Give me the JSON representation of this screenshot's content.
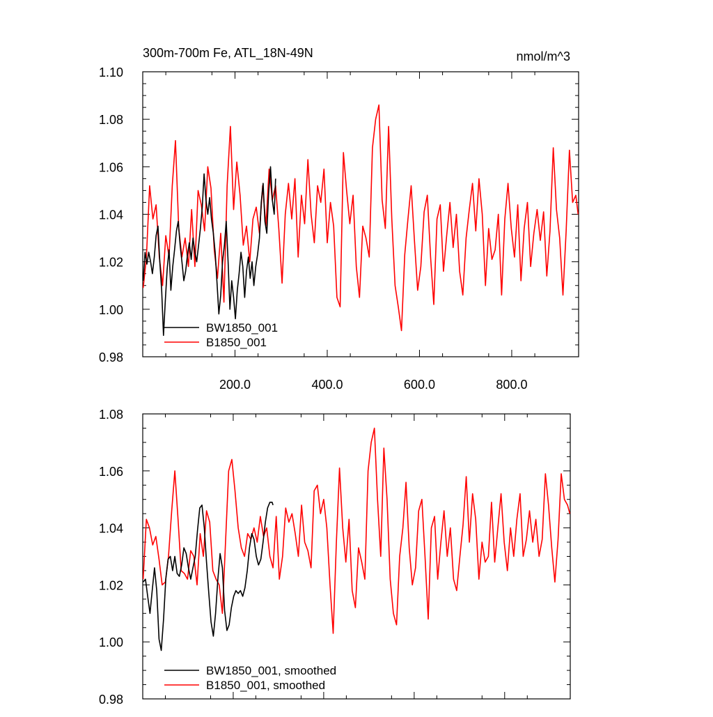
{
  "chart_data": [
    {
      "type": "line",
      "title": "300m-700m Fe, ATL_18N-49N",
      "units": "nmol/m^3",
      "xlabel": "",
      "ylabel": "",
      "xlim": [
        0,
        945
      ],
      "ylim": [
        0.98,
        1.1
      ],
      "x_ticks": [
        200,
        400,
        600,
        800
      ],
      "x_tick_labels": [
        "200.0",
        "400.0",
        "600.0",
        "800.0"
      ],
      "y_ticks": [
        0.98,
        1.0,
        1.02,
        1.04,
        1.06,
        1.08,
        1.1
      ],
      "y_tick_labels": [
        "0.98",
        "1.00",
        "1.02",
        "1.04",
        "1.06",
        "1.08",
        "1.10"
      ],
      "grid": false,
      "legend_position": "bottom-left",
      "series": [
        {
          "name": "BW1850_001",
          "color": "#000000",
          "x": [
            1,
            5,
            9,
            13,
            17,
            21,
            25,
            29,
            33,
            37,
            41,
            45,
            49,
            53,
            57,
            61,
            65,
            69,
            73,
            77,
            81,
            85,
            89,
            93,
            97,
            101,
            105,
            109,
            113,
            117,
            121,
            125,
            129,
            133,
            137,
            141,
            145,
            149,
            153,
            157,
            161,
            165,
            169,
            173,
            177,
            181,
            185,
            189,
            193,
            197,
            201,
            205,
            209,
            213,
            217,
            221,
            225,
            229,
            233,
            237,
            241,
            245,
            249,
            253,
            257,
            261,
            265,
            269,
            273,
            277,
            281,
            285,
            288
          ],
          "y": [
            1.012,
            1.024,
            1.019,
            1.024,
            1.02,
            1.015,
            1.022,
            1.031,
            1.035,
            1.02,
            1.008,
            0.989,
            1.004,
            1.017,
            1.025,
            1.008,
            1.018,
            1.025,
            1.033,
            1.037,
            1.027,
            1.02,
            1.012,
            1.016,
            1.023,
            1.028,
            1.021,
            1.03,
            1.024,
            1.02,
            1.027,
            1.034,
            1.043,
            1.057,
            1.046,
            1.04,
            1.047,
            1.038,
            1.032,
            1.024,
            1.011,
            0.998,
            1.006,
            1.02,
            1.027,
            1.037,
            1.02,
            1.0,
            1.012,
            1.005,
            0.996,
            1.008,
            1.015,
            1.024,
            1.018,
            1.005,
            1.016,
            1.022,
            1.013,
            1.02,
            1.01,
            1.018,
            1.023,
            1.03,
            1.045,
            1.053,
            1.037,
            1.032,
            1.049,
            1.06,
            1.046,
            1.04,
            1.055
          ]
        },
        {
          "name": "B1850_001",
          "color": "#ff0000",
          "x": [
            1,
            8,
            15,
            22,
            29,
            36,
            43,
            50,
            57,
            64,
            71,
            78,
            85,
            92,
            99,
            106,
            113,
            120,
            127,
            134,
            141,
            148,
            155,
            162,
            169,
            176,
            183,
            190,
            197,
            204,
            211,
            218,
            225,
            232,
            239,
            246,
            253,
            260,
            267,
            274,
            281,
            288,
            295,
            302,
            309,
            316,
            323,
            330,
            337,
            344,
            351,
            358,
            365,
            372,
            379,
            386,
            393,
            400,
            407,
            414,
            421,
            428,
            435,
            442,
            449,
            456,
            463,
            470,
            477,
            484,
            491,
            498,
            505,
            512,
            519,
            526,
            533,
            540,
            547,
            554,
            561,
            568,
            575,
            582,
            589,
            596,
            603,
            610,
            617,
            624,
            631,
            638,
            645,
            652,
            659,
            666,
            673,
            680,
            687,
            694,
            701,
            708,
            715,
            722,
            729,
            736,
            743,
            750,
            757,
            764,
            771,
            778,
            785,
            792,
            799,
            806,
            813,
            820,
            827,
            834,
            841,
            848,
            855,
            862,
            869,
            876,
            883,
            890,
            897,
            904,
            911,
            918,
            925,
            932,
            939,
            944
          ],
          "y": [
            1.009,
            1.022,
            1.052,
            1.038,
            1.044,
            1.022,
            1.01,
            1.031,
            1.022,
            1.052,
            1.071,
            1.034,
            1.022,
            1.03,
            1.018,
            1.042,
            1.018,
            1.05,
            1.044,
            1.033,
            1.06,
            1.051,
            1.025,
            1.013,
            1.032,
            1.003,
            1.052,
            1.077,
            1.042,
            1.062,
            1.048,
            1.027,
            1.035,
            1.02,
            1.038,
            1.043,
            1.032,
            1.052,
            1.035,
            1.059,
            1.046,
            1.052,
            1.034,
            1.011,
            1.04,
            1.053,
            1.038,
            1.055,
            1.022,
            1.048,
            1.036,
            1.063,
            1.04,
            1.028,
            1.052,
            1.045,
            1.059,
            1.028,
            1.045,
            1.035,
            1.005,
            1.001,
            1.066,
            1.05,
            1.036,
            1.048,
            1.018,
            1.005,
            1.035,
            1.03,
            1.022,
            1.068,
            1.08,
            1.086,
            1.046,
            1.034,
            1.077,
            1.038,
            1.01,
            1.001,
            0.991,
            1.023,
            1.038,
            1.052,
            1.029,
            1.008,
            1.018,
            1.041,
            1.048,
            1.022,
            1.002,
            1.038,
            1.044,
            1.016,
            1.031,
            1.045,
            1.026,
            1.04,
            1.016,
            1.006,
            1.03,
            1.042,
            1.053,
            1.033,
            1.055,
            1.04,
            1.01,
            1.034,
            1.021,
            1.025,
            1.04,
            1.006,
            1.038,
            1.053,
            1.034,
            1.022,
            1.044,
            1.012,
            1.034,
            1.045,
            1.018,
            1.032,
            1.042,
            1.029,
            1.041,
            1.014,
            1.033,
            1.068,
            1.042,
            1.03,
            1.006,
            1.033,
            1.067,
            1.045,
            1.048,
            1.04
          ]
        }
      ]
    },
    {
      "type": "line",
      "title": "",
      "xlabel": "",
      "ylabel": "",
      "xlim": [
        0,
        945
      ],
      "ylim": [
        0.98,
        1.08
      ],
      "x_ticks": [
        200,
        400,
        600,
        800
      ],
      "x_tick_labels": [],
      "y_ticks": [
        0.98,
        1.0,
        1.02,
        1.04,
        1.06,
        1.08
      ],
      "y_tick_labels": [
        "0.98",
        "1.00",
        "1.02",
        "1.04",
        "1.06",
        "1.08"
      ],
      "grid": false,
      "legend_position": "bottom-left",
      "series": [
        {
          "name": "BW1850_001, smoothed",
          "color": "#000000",
          "x": [
            1,
            6,
            11,
            16,
            21,
            26,
            31,
            36,
            41,
            46,
            51,
            56,
            61,
            66,
            71,
            76,
            81,
            86,
            91,
            96,
            101,
            106,
            111,
            116,
            121,
            126,
            131,
            136,
            141,
            146,
            151,
            156,
            161,
            166,
            171,
            176,
            181,
            186,
            191,
            196,
            201,
            206,
            211,
            216,
            221,
            226,
            231,
            236,
            241,
            246,
            251,
            256,
            261,
            266,
            271,
            276,
            281,
            286,
            288
          ],
          "y": [
            1.021,
            1.022,
            1.016,
            1.01,
            1.018,
            1.026,
            1.018,
            1.001,
            0.997,
            1.008,
            1.022,
            1.029,
            1.03,
            1.025,
            1.03,
            1.024,
            1.023,
            1.027,
            1.033,
            1.031,
            1.026,
            1.022,
            1.026,
            1.03,
            1.039,
            1.047,
            1.048,
            1.04,
            1.028,
            1.017,
            1.007,
            1.002,
            1.01,
            1.022,
            1.031,
            1.026,
            1.011,
            1.004,
            1.006,
            1.012,
            1.016,
            1.018,
            1.017,
            1.018,
            1.016,
            1.019,
            1.025,
            1.033,
            1.038,
            1.036,
            1.03,
            1.027,
            1.029,
            1.035,
            1.042,
            1.047,
            1.049,
            1.049,
            1.048
          ]
        },
        {
          "name": "B1850_001, smoothed",
          "color": "#ff0000",
          "x": [
            1,
            8,
            15,
            22,
            29,
            36,
            43,
            50,
            57,
            64,
            71,
            78,
            85,
            92,
            99,
            106,
            113,
            120,
            127,
            134,
            141,
            148,
            155,
            162,
            169,
            176,
            183,
            190,
            197,
            204,
            211,
            218,
            225,
            232,
            239,
            246,
            253,
            260,
            267,
            274,
            281,
            288,
            295,
            302,
            309,
            316,
            323,
            330,
            337,
            344,
            351,
            358,
            365,
            372,
            379,
            386,
            393,
            400,
            407,
            414,
            421,
            428,
            435,
            442,
            449,
            456,
            463,
            470,
            477,
            484,
            491,
            498,
            505,
            512,
            519,
            526,
            533,
            540,
            547,
            554,
            561,
            568,
            575,
            582,
            589,
            596,
            603,
            610,
            617,
            624,
            631,
            638,
            645,
            652,
            659,
            666,
            673,
            680,
            687,
            694,
            701,
            708,
            715,
            722,
            729,
            736,
            743,
            750,
            757,
            764,
            771,
            778,
            785,
            792,
            799,
            806,
            813,
            820,
            827,
            834,
            841,
            848,
            855,
            862,
            869,
            876,
            883,
            890,
            897,
            904,
            911,
            918,
            925,
            932,
            939,
            944
          ],
          "y": [
            1.022,
            1.043,
            1.04,
            1.034,
            1.037,
            1.029,
            1.02,
            1.021,
            1.03,
            1.046,
            1.06,
            1.043,
            1.025,
            1.024,
            1.022,
            1.032,
            1.03,
            1.02,
            1.038,
            1.03,
            1.046,
            1.042,
            1.025,
            1.022,
            1.02,
            1.01,
            1.035,
            1.06,
            1.064,
            1.053,
            1.04,
            1.033,
            1.03,
            1.038,
            1.036,
            1.04,
            1.035,
            1.044,
            1.037,
            1.04,
            1.03,
            1.026,
            1.044,
            1.022,
            1.03,
            1.047,
            1.042,
            1.045,
            1.038,
            1.03,
            1.048,
            1.035,
            1.032,
            1.026,
            1.053,
            1.055,
            1.045,
            1.05,
            1.04,
            1.02,
            1.003,
            1.035,
            1.061,
            1.04,
            1.028,
            1.043,
            1.018,
            1.012,
            1.033,
            1.028,
            1.022,
            1.06,
            1.07,
            1.075,
            1.05,
            1.03,
            1.068,
            1.05,
            1.022,
            1.01,
            1.006,
            1.03,
            1.04,
            1.056,
            1.033,
            1.02,
            1.026,
            1.046,
            1.05,
            1.03,
            1.008,
            1.04,
            1.044,
            1.022,
            1.035,
            1.046,
            1.03,
            1.04,
            1.022,
            1.018,
            1.03,
            1.041,
            1.058,
            1.035,
            1.052,
            1.043,
            1.022,
            1.035,
            1.028,
            1.03,
            1.049,
            1.028,
            1.04,
            1.052,
            1.035,
            1.025,
            1.04,
            1.03,
            1.043,
            1.052,
            1.03,
            1.036,
            1.046,
            1.035,
            1.043,
            1.03,
            1.036,
            1.059,
            1.048,
            1.033,
            1.021,
            1.036,
            1.059,
            1.05,
            1.048,
            1.045
          ]
        }
      ]
    }
  ]
}
